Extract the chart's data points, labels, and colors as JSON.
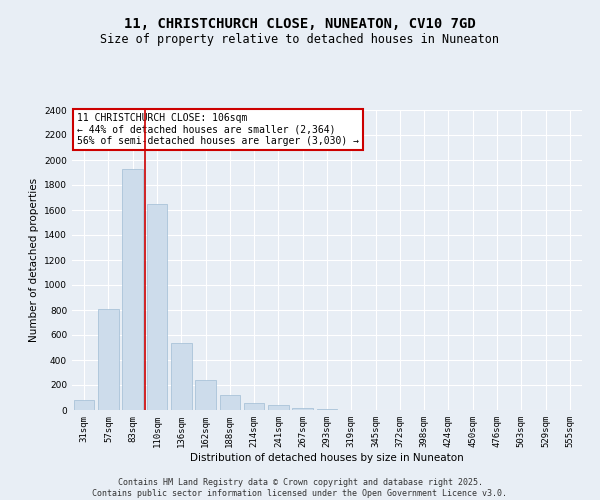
{
  "title_line1": "11, CHRISTCHURCH CLOSE, NUNEATON, CV10 7GD",
  "title_line2": "Size of property relative to detached houses in Nuneaton",
  "xlabel": "Distribution of detached houses by size in Nuneaton",
  "ylabel": "Number of detached properties",
  "categories": [
    "31sqm",
    "57sqm",
    "83sqm",
    "110sqm",
    "136sqm",
    "162sqm",
    "188sqm",
    "214sqm",
    "241sqm",
    "267sqm",
    "293sqm",
    "319sqm",
    "345sqm",
    "372sqm",
    "398sqm",
    "424sqm",
    "450sqm",
    "476sqm",
    "503sqm",
    "529sqm",
    "555sqm"
  ],
  "values": [
    80,
    810,
    1930,
    1650,
    540,
    240,
    120,
    60,
    40,
    20,
    5,
    0,
    0,
    0,
    0,
    0,
    0,
    0,
    0,
    0,
    0
  ],
  "bar_color": "#cddceb",
  "bar_edge_color": "#a0bcd4",
  "vline_color": "#cc0000",
  "vline_x_index": 3,
  "ylim": [
    0,
    2400
  ],
  "yticks": [
    0,
    200,
    400,
    600,
    800,
    1000,
    1200,
    1400,
    1600,
    1800,
    2000,
    2200,
    2400
  ],
  "annotation_text": "11 CHRISTCHURCH CLOSE: 106sqm\n← 44% of detached houses are smaller (2,364)\n56% of semi-detached houses are larger (3,030) →",
  "annotation_box_edgecolor": "#cc0000",
  "annotation_bg": "white",
  "footer_line1": "Contains HM Land Registry data © Crown copyright and database right 2025.",
  "footer_line2": "Contains public sector information licensed under the Open Government Licence v3.0.",
  "bg_color": "#e8eef5",
  "plot_bg_color": "#e8eef5",
  "grid_color": "white",
  "title_fontsize": 10,
  "subtitle_fontsize": 8.5,
  "tick_fontsize": 6.5,
  "label_fontsize": 7.5,
  "annotation_fontsize": 7,
  "footer_fontsize": 6
}
